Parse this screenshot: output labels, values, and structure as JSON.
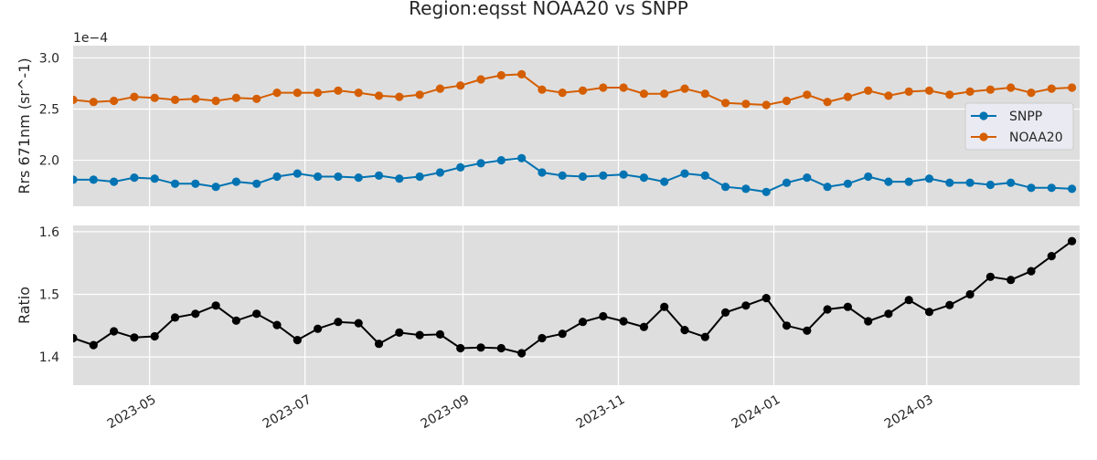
{
  "chart_data": {
    "type": "line",
    "title": "Region:eqsst NOAA20 vs SNPP",
    "x_tick_labels": [
      "2023-05",
      "2023-07",
      "2023-09",
      "2023-11",
      "2024-01",
      "2024-03"
    ],
    "x_tick_dates": [
      "2023-05-01",
      "2023-07-01",
      "2023-09-01",
      "2023-11-01",
      "2024-01-01",
      "2024-03-01"
    ],
    "x_range": [
      "2023-04-01",
      "2024-04-30"
    ],
    "dates": [
      "2023-04-01",
      "2023-04-09",
      "2023-04-17",
      "2023-04-25",
      "2023-05-03",
      "2023-05-11",
      "2023-05-19",
      "2023-05-27",
      "2023-06-04",
      "2023-06-12",
      "2023-06-20",
      "2023-06-28",
      "2023-07-06",
      "2023-07-14",
      "2023-07-22",
      "2023-07-30",
      "2023-08-07",
      "2023-08-15",
      "2023-08-23",
      "2023-08-31",
      "2023-09-08",
      "2023-09-16",
      "2023-09-24",
      "2023-10-02",
      "2023-10-10",
      "2023-10-18",
      "2023-10-26",
      "2023-11-03",
      "2023-11-11",
      "2023-11-19",
      "2023-11-27",
      "2023-12-05",
      "2023-12-13",
      "2023-12-21",
      "2023-12-29",
      "2024-01-06",
      "2024-01-14",
      "2024-01-22",
      "2024-01-30",
      "2024-02-07",
      "2024-02-15",
      "2024-02-23",
      "2024-03-02",
      "2024-03-10",
      "2024-03-18",
      "2024-03-26",
      "2024-04-03",
      "2024-04-11",
      "2024-04-19",
      "2024-04-27"
    ],
    "panels": [
      {
        "ylabel": "Rrs 671nm (sr^-1)",
        "offset_text": "1e−4",
        "ylim": [
          1.55,
          3.12
        ],
        "y_ticks": [
          2.0,
          2.5,
          3.0
        ],
        "y_tick_labels": [
          "2.0",
          "2.5",
          "3.0"
        ],
        "legend": "center-right",
        "series": [
          {
            "name": "SNPP",
            "color": "#0173b2",
            "values": [
              1.81,
              1.81,
              1.79,
              1.83,
              1.82,
              1.77,
              1.77,
              1.74,
              1.79,
              1.77,
              1.84,
              1.87,
              1.84,
              1.84,
              1.83,
              1.85,
              1.82,
              1.84,
              1.88,
              1.93,
              1.97,
              2.0,
              2.02,
              1.88,
              1.85,
              1.84,
              1.85,
              1.86,
              1.83,
              1.79,
              1.87,
              1.85,
              1.74,
              1.72,
              1.69,
              1.78,
              1.83,
              1.74,
              1.77,
              1.84,
              1.79,
              1.79,
              1.82,
              1.78,
              1.78,
              1.76,
              1.78,
              1.73,
              1.73,
              1.72
            ]
          },
          {
            "name": "NOAA20",
            "color": "#d55e00",
            "values": [
              2.59,
              2.57,
              2.58,
              2.62,
              2.61,
              2.59,
              2.6,
              2.58,
              2.61,
              2.6,
              2.66,
              2.66,
              2.66,
              2.68,
              2.66,
              2.63,
              2.62,
              2.64,
              2.7,
              2.73,
              2.79,
              2.83,
              2.84,
              2.69,
              2.66,
              2.68,
              2.71,
              2.71,
              2.65,
              2.65,
              2.7,
              2.65,
              2.56,
              2.55,
              2.54,
              2.58,
              2.64,
              2.57,
              2.62,
              2.68,
              2.63,
              2.67,
              2.68,
              2.64,
              2.67,
              2.69,
              2.71,
              2.66,
              2.7,
              2.71
            ]
          }
        ]
      },
      {
        "ylabel": "Ratio",
        "ylim": [
          1.355,
          1.61
        ],
        "y_ticks": [
          1.4,
          1.5,
          1.6
        ],
        "y_tick_labels": [
          "1.4",
          "1.5",
          "1.6"
        ],
        "series": [
          {
            "name": "",
            "color": "#000000",
            "values": [
              1.43,
              1.419,
              1.441,
              1.431,
              1.433,
              1.463,
              1.469,
              1.482,
              1.458,
              1.469,
              1.451,
              1.427,
              1.445,
              1.456,
              1.454,
              1.421,
              1.439,
              1.435,
              1.436,
              1.414,
              1.415,
              1.414,
              1.406,
              1.43,
              1.437,
              1.456,
              1.465,
              1.457,
              1.448,
              1.48,
              1.443,
              1.432,
              1.471,
              1.482,
              1.494,
              1.45,
              1.442,
              1.476,
              1.48,
              1.457,
              1.469,
              1.491,
              1.472,
              1.483,
              1.5,
              1.528,
              1.523,
              1.537,
              1.561,
              1.585
            ]
          }
        ]
      }
    ],
    "grid": true
  }
}
